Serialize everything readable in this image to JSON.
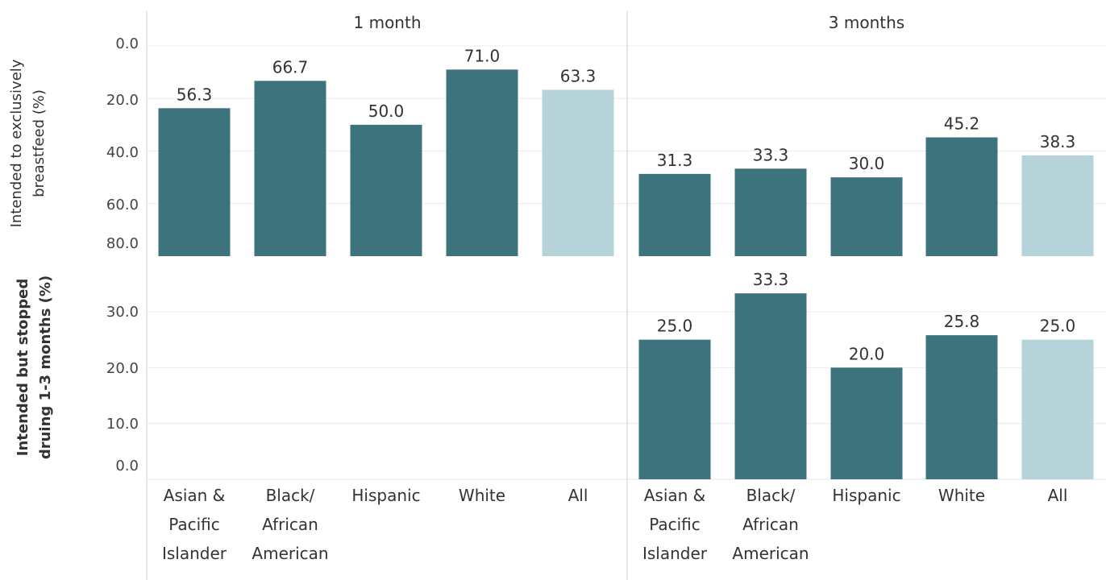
{
  "chart_data": {
    "type": "bar",
    "column_headers": [
      "1 month",
      "3 months"
    ],
    "categories": [
      [
        "Asian &",
        "Pacific",
        "Islander"
      ],
      [
        "Black/",
        "African",
        "American"
      ],
      [
        "Hispanic"
      ],
      [
        "White"
      ],
      [
        "All"
      ]
    ],
    "colors": {
      "bar": "#3d737c",
      "all_bar": "#b5d3d8",
      "grid": "#ececec",
      "divider": "#cfcfcf"
    },
    "rows": [
      {
        "ylabel": [
          "Intended to exclusively",
          "breastfeed (%)"
        ],
        "ylim": [
          0,
          80
        ],
        "yticks": [
          "0.0",
          "20.0",
          "40.0",
          "60.0",
          "80.0"
        ],
        "panels": [
          {
            "values": [
              56.3,
              66.7,
              50.0,
              71.0,
              63.3
            ],
            "labels": [
              "56.3",
              "66.7",
              "50.0",
              "71.0",
              "63.3"
            ]
          },
          {
            "values": [
              31.3,
              33.3,
              30.0,
              45.2,
              38.3
            ],
            "labels": [
              "31.3",
              "33.3",
              "30.0",
              "45.2",
              "38.3"
            ]
          }
        ]
      },
      {
        "ylabel": [
          "Intended but stopped",
          "druing 1-3 months (%)"
        ],
        "ylim": [
          0,
          30
        ],
        "yticks": [
          "0.0",
          "10.0",
          "20.0",
          "30.0"
        ],
        "panels": [
          {
            "values": [],
            "labels": []
          },
          {
            "values": [
              25.0,
              33.3,
              20.0,
              25.8,
              25.0
            ],
            "labels": [
              "25.0",
              "33.3",
              "20.0",
              "25.8",
              "25.0"
            ]
          }
        ]
      }
    ],
    "grid": true,
    "legend": "none"
  }
}
